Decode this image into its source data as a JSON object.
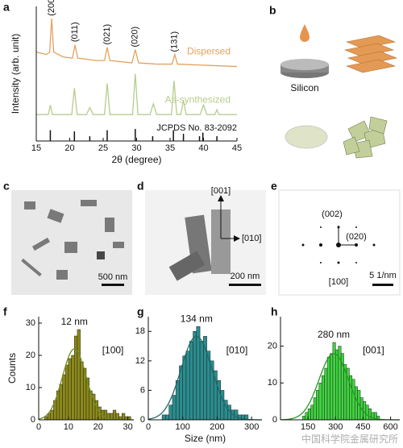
{
  "panel_labels": [
    "a",
    "b",
    "c",
    "d",
    "e",
    "f",
    "g",
    "h"
  ],
  "schematic": {
    "label": "Silicon"
  },
  "images": {
    "c": {
      "scale": "500 nm"
    },
    "d": {
      "scale": "200 nm",
      "labels": [
        "[001]",
        "[010]"
      ]
    },
    "e": {
      "scale": "5 1/nm",
      "labels": [
        "(002)",
        "(020)",
        "[100]"
      ]
    }
  },
  "watermark": "中国科学院金属研究所",
  "chart_data": [
    {
      "type": "line",
      "xlabel": "2θ (degree)",
      "ylabel": "Intensity (arb. unit)",
      "xlim": [
        15,
        45
      ],
      "ylim": [
        -12,
        100
      ],
      "xticks": [
        15,
        20,
        25,
        30,
        35,
        40,
        45
      ],
      "series": [
        {
          "name": "Dispersed",
          "color": "#e3a25e",
          "x": [
            15,
            16.5,
            17.0,
            17.3,
            17.6,
            19,
            20.4,
            20.8,
            21.2,
            24,
            25.2,
            25.6,
            26,
            29.3,
            29.8,
            30.3,
            33,
            35.3,
            35.7,
            36.1,
            45
          ],
          "values": [
            62,
            60,
            62,
            90,
            62,
            58,
            57,
            68,
            57,
            55,
            55,
            66,
            55,
            53,
            64,
            53,
            52,
            52,
            60,
            52,
            50
          ]
        },
        {
          "name": "As-synthesized",
          "color": "#b8cc8c",
          "x": [
            15,
            16.8,
            17.1,
            17.4,
            20.3,
            20.7,
            21.1,
            22.5,
            23,
            23.5,
            25.2,
            25.6,
            26,
            27.5,
            29.4,
            29.8,
            30.2,
            32,
            32.5,
            33,
            35.2,
            35.6,
            36,
            36.6,
            37,
            37.4,
            39.5,
            40,
            40.5,
            41.7,
            42,
            42.3,
            45
          ],
          "values": [
            10,
            10,
            18,
            10,
            10,
            32,
            10,
            10,
            16,
            10,
            10,
            36,
            10,
            10,
            10,
            44,
            10,
            10,
            19,
            10,
            10,
            38,
            10,
            10,
            22,
            10,
            10,
            18,
            10,
            10,
            14,
            10,
            10
          ]
        }
      ],
      "reference": {
        "name": "JCPDS No. 83-2092",
        "color": "#111111",
        "x": [
          17.1,
          20.7,
          23.0,
          25.6,
          29.8,
          32.4,
          35.5,
          37.0,
          39.4,
          39.9,
          42.0
        ],
        "values": [
          -3,
          -4,
          -8,
          -3,
          -2,
          -8,
          -3,
          -6,
          -8,
          -5,
          -8
        ]
      },
      "peak_labels": [
        {
          "text": "(200)",
          "x": 17.3
        },
        {
          "text": "(011)",
          "x": 20.8
        },
        {
          "text": "(021)",
          "x": 25.6
        },
        {
          "text": "(020)",
          "x": 29.8
        },
        {
          "text": "(131)",
          "x": 35.7
        }
      ]
    },
    {
      "type": "histogram",
      "ylabel": "Counts",
      "color": "#8c8a18",
      "fit_color": "#6d8c1e",
      "xlim": [
        0,
        32
      ],
      "ylim": [
        0,
        32
      ],
      "xticks": [
        0,
        10,
        20,
        30
      ],
      "yticks": [
        0,
        10,
        20,
        30
      ],
      "bins": [
        2,
        3,
        4,
        5,
        6,
        7,
        8,
        9,
        10,
        11,
        12,
        13,
        14,
        15,
        16,
        17,
        18,
        19,
        20,
        21,
        22,
        23,
        24,
        25,
        26,
        27,
        28,
        29,
        30,
        31
      ],
      "values": [
        1,
        2,
        3,
        6,
        9,
        11,
        14,
        17,
        19,
        20,
        26,
        28,
        18,
        16,
        13,
        9,
        8,
        6,
        4,
        3,
        3,
        2,
        2,
        3,
        2,
        1,
        2,
        1,
        1
      ],
      "fit": {
        "mean": 12,
        "sd": 4,
        "peak": 22
      },
      "annotations": [
        "12 nm",
        "[100]"
      ]
    },
    {
      "type": "histogram",
      "xlabel": "Size (nm)",
      "color": "#2a8d8f",
      "fit_color": "#1f6b6b",
      "xlim": [
        0,
        330
      ],
      "ylim": [
        0,
        21
      ],
      "xticks": [
        0,
        100,
        200,
        300
      ],
      "yticks": [
        0,
        6,
        12,
        18
      ],
      "bins": [
        40,
        50,
        60,
        70,
        80,
        90,
        100,
        110,
        120,
        130,
        140,
        150,
        160,
        170,
        180,
        190,
        200,
        210,
        220,
        230,
        240,
        250,
        260,
        270,
        280,
        290
      ],
      "values": [
        1,
        1,
        3,
        5,
        8,
        11,
        13,
        14,
        16,
        18,
        19,
        16,
        17,
        14,
        12,
        10,
        8,
        6,
        4,
        3,
        2,
        2,
        1,
        1,
        1
      ],
      "fit": {
        "mean": 140,
        "sd": 45,
        "peak": 17
      },
      "annotations": [
        "134 nm",
        "[010]"
      ]
    },
    {
      "type": "histogram",
      "color": "#3fd43f",
      "fit_color": "#239a23",
      "xlim": [
        0,
        650
      ],
      "ylim": [
        0,
        28
      ],
      "xticks": [
        150,
        300,
        450,
        600
      ],
      "yticks": [
        0,
        10,
        20
      ],
      "bins": [
        120,
        135,
        150,
        165,
        180,
        195,
        210,
        225,
        240,
        255,
        270,
        285,
        300,
        315,
        330,
        345,
        360,
        375,
        390,
        405,
        420,
        435,
        450,
        465,
        480,
        495,
        510,
        525,
        540
      ],
      "values": [
        1,
        2,
        3,
        4,
        6,
        8,
        10,
        12,
        14,
        17,
        18,
        21,
        19,
        20,
        18,
        15,
        14,
        12,
        11,
        9,
        8,
        6,
        5,
        4,
        3,
        2,
        2,
        1
      ],
      "fit": {
        "mean": 290,
        "sd": 80,
        "peak": 18
      },
      "annotations": [
        "280 nm",
        "[001]"
      ]
    }
  ]
}
